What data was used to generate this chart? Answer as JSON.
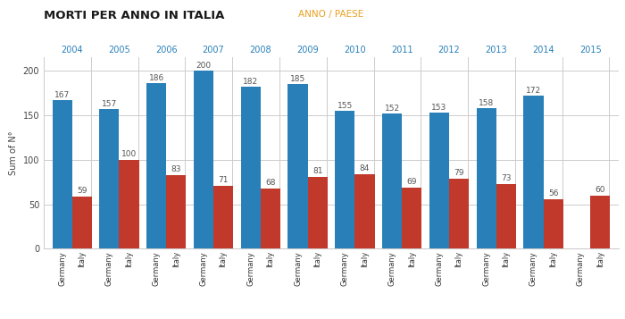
{
  "title": "MORTI PER ANNO IN ITALIA",
  "xlabel_top": "ANNO / PAESE",
  "ylabel": "Sum of N°",
  "years": [
    2004,
    2005,
    2006,
    2007,
    2008,
    2009,
    2010,
    2011,
    2012,
    2013,
    2014,
    2015
  ],
  "germany_values": [
    167,
    157,
    186,
    200,
    182,
    185,
    155,
    152,
    153,
    158,
    172,
    null
  ],
  "italy_values": [
    59,
    100,
    83,
    71,
    68,
    81,
    84,
    69,
    79,
    73,
    56,
    60
  ],
  "germany_color": "#2980B9",
  "italy_color": "#C0392B",
  "bar_width": 0.42,
  "ylim": [
    0,
    215
  ],
  "yticks": [
    0,
    50,
    100,
    150,
    200
  ],
  "title_color": "#1a1a1a",
  "anno_paese_color": "#E8A020",
  "year_label_color": "#2980B9",
  "bg_color": "#FFFFFF",
  "grid_color": "#CCCCCC",
  "label_fontsize": 6.5,
  "title_fontsize": 9.5,
  "anno_paese_fontsize": 7.5,
  "ylabel_fontsize": 7,
  "tick_fontsize": 7,
  "country_tick_fontsize": 6,
  "bar_label_color": "#555555"
}
